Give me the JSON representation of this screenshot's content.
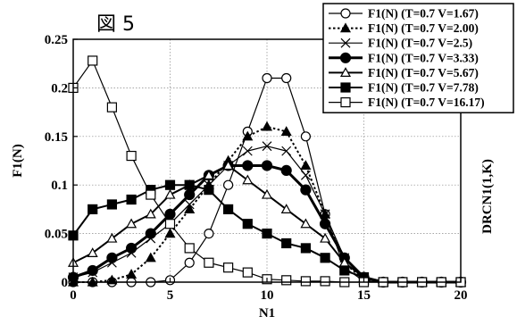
{
  "annotation": "図 5",
  "chart_data": {
    "type": "line",
    "title": "",
    "xlabel": "N1",
    "ylabel": "F1(N)",
    "ylabel_right": "DRCN1(1,K)",
    "xlim": [
      0,
      20
    ],
    "ylim": [
      0,
      0.25
    ],
    "xticks": [
      0,
      5,
      10,
      15,
      20
    ],
    "yticks": [
      0,
      0.05,
      0.1,
      0.15,
      0.2,
      0.25
    ],
    "xtick_labels": [
      "0",
      "5",
      "10",
      "15",
      "20"
    ],
    "ytick_labels": [
      "0",
      "0.05",
      "0.1",
      "0.15",
      "0.2",
      "0.25"
    ],
    "grid": true,
    "legend_position": "top-right",
    "series": [
      {
        "name": "F1(N) (T=0.7 V=1.67)",
        "marker": "circle-open",
        "line": "solid",
        "stroke_width": 1.2,
        "x": [
          0,
          1,
          2,
          3,
          4,
          5,
          6,
          7,
          8,
          9,
          10,
          11,
          12,
          13,
          14,
          15,
          16,
          17,
          18,
          19,
          20
        ],
        "y": [
          0,
          0,
          0,
          0,
          0,
          0.002,
          0.02,
          0.05,
          0.1,
          0.155,
          0.21,
          0.21,
          0.15,
          0.07,
          0.015,
          0.001,
          0,
          0,
          0,
          0,
          0
        ]
      },
      {
        "name": "F1(N) (T=0.7 V=2.00)",
        "marker": "triangle-filled",
        "line": "dotted",
        "stroke_width": 2,
        "x": [
          0,
          1,
          2,
          3,
          4,
          5,
          6,
          7,
          8,
          9,
          10,
          11,
          12,
          13,
          14,
          15,
          16,
          17,
          18,
          19,
          20
        ],
        "y": [
          0,
          0,
          0.002,
          0.008,
          0.025,
          0.05,
          0.075,
          0.1,
          0.125,
          0.15,
          0.16,
          0.155,
          0.12,
          0.07,
          0.02,
          0.002,
          0,
          0,
          0,
          0,
          0
        ]
      },
      {
        "name": "F1(N) (T=0.7 V=2.5)",
        "marker": "x",
        "line": "solid",
        "stroke_width": 1.2,
        "x": [
          0,
          1,
          2,
          3,
          4,
          5,
          6,
          7,
          8,
          9,
          10,
          11,
          12,
          13,
          14,
          15,
          16,
          17,
          18,
          19,
          20
        ],
        "y": [
          0.005,
          0.01,
          0.02,
          0.03,
          0.045,
          0.06,
          0.08,
          0.1,
          0.12,
          0.135,
          0.14,
          0.135,
          0.11,
          0.07,
          0.025,
          0.003,
          0,
          0,
          0,
          0,
          0
        ]
      },
      {
        "name": "F1(N) (T=0.7 V=3.33)",
        "marker": "circle-filled",
        "line": "solid",
        "stroke_width": 3,
        "x": [
          0,
          1,
          2,
          3,
          4,
          5,
          6,
          7,
          8,
          9,
          10,
          11,
          12,
          13,
          14,
          15,
          16,
          17,
          18,
          19,
          20
        ],
        "y": [
          0.005,
          0.012,
          0.025,
          0.035,
          0.05,
          0.07,
          0.09,
          0.11,
          0.12,
          0.12,
          0.12,
          0.115,
          0.095,
          0.06,
          0.025,
          0.005,
          0,
          0,
          0,
          0,
          0
        ]
      },
      {
        "name": "F1(N) (T=0.7 V=5.67)",
        "marker": "triangle-open",
        "line": "solid",
        "stroke_width": 2,
        "x": [
          0,
          1,
          2,
          3,
          4,
          5,
          6,
          7,
          8,
          9,
          10,
          11,
          12,
          13,
          14,
          15,
          16,
          17,
          18,
          19,
          20
        ],
        "y": [
          0.02,
          0.03,
          0.045,
          0.06,
          0.07,
          0.09,
          0.1,
          0.11,
          0.12,
          0.105,
          0.09,
          0.075,
          0.06,
          0.045,
          0.02,
          0.005,
          0,
          0,
          0,
          0,
          0
        ]
      },
      {
        "name": "F1(N) (T=0.7 V=7.78)",
        "marker": "square-filled",
        "line": "solid",
        "stroke_width": 2,
        "x": [
          0,
          1,
          2,
          3,
          4,
          5,
          6,
          7,
          8,
          9,
          10,
          11,
          12,
          13,
          14,
          15,
          16,
          17,
          18,
          19,
          20
        ],
        "y": [
          0.048,
          0.075,
          0.08,
          0.085,
          0.095,
          0.1,
          0.1,
          0.095,
          0.075,
          0.06,
          0.05,
          0.04,
          0.035,
          0.025,
          0.012,
          0.005,
          0,
          0,
          0,
          0,
          0
        ]
      },
      {
        "name": "F1(N) (T=0.7 V=16.17)",
        "marker": "square-open",
        "line": "solid",
        "stroke_width": 1.2,
        "x": [
          0,
          1,
          2,
          3,
          4,
          5,
          6,
          7,
          8,
          9,
          10,
          11,
          12,
          13,
          14,
          15,
          16,
          17,
          18,
          19,
          20
        ],
        "y": [
          0.2,
          0.228,
          0.18,
          0.13,
          0.09,
          0.06,
          0.035,
          0.02,
          0.015,
          0.01,
          0.003,
          0.002,
          0.001,
          0.001,
          0,
          0,
          0,
          0,
          0,
          0,
          0
        ]
      }
    ]
  }
}
